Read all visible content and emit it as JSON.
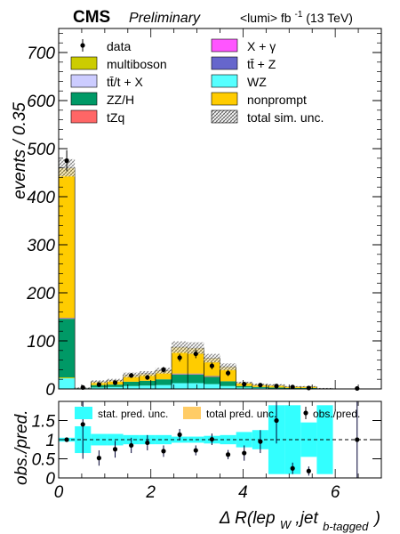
{
  "header": {
    "experiment": "CMS",
    "status": "Preliminary",
    "lumi": "<lumi> fb",
    "lumi_exp": "-1",
    "energy": "(13 TeV)"
  },
  "colors": {
    "multiboson": "#cccc00",
    "ttX": "#ccccff",
    "ZZH": "#009966",
    "tZq": "#ff6666",
    "Xgamma": "#ff55ff",
    "ttZ": "#6666cc",
    "WZ": "#55ffff",
    "nonprompt": "#ffcc00",
    "stat_band": "#33ffff",
    "total_band": "#ffcc66"
  },
  "chart_data": [
    {
      "type": "bar",
      "stacked": true,
      "ylabel": "events / 0.35",
      "ylim": [
        0,
        750
      ],
      "yticks": [
        0,
        100,
        200,
        300,
        400,
        500,
        600,
        700
      ],
      "xlim": [
        0,
        7.0
      ],
      "bin_width": 0.35,
      "x_bin_edges": [
        0,
        0.35,
        0.7,
        1.05,
        1.4,
        1.75,
        2.1,
        2.45,
        2.8,
        3.15,
        3.5,
        3.85,
        4.2,
        4.55,
        4.9,
        5.25,
        5.6,
        5.95,
        6.3,
        6.65,
        7.0
      ],
      "series": [
        {
          "name": "WZ",
          "values": [
            22,
            1,
            3,
            4,
            6,
            7,
            8,
            12,
            12,
            10,
            6,
            3,
            2,
            1,
            1,
            1,
            0,
            0,
            0,
            0
          ]
        },
        {
          "name": "multiboson",
          "values": [
            2,
            0,
            0,
            0,
            0,
            0,
            0,
            0,
            0,
            0,
            0,
            0,
            0,
            0,
            0,
            0,
            0,
            0,
            0,
            0
          ]
        },
        {
          "name": "ZZ/H",
          "values": [
            122,
            1,
            5,
            5,
            9,
            10,
            12,
            18,
            18,
            15,
            10,
            3,
            2,
            2,
            1,
            1,
            0,
            0,
            0,
            0
          ]
        },
        {
          "name": "tZq",
          "values": [
            1,
            0,
            0,
            0,
            0,
            0,
            0,
            1,
            1,
            1,
            0,
            0,
            0,
            0,
            0,
            0,
            0,
            0,
            0,
            0
          ]
        },
        {
          "name": "ttZ",
          "values": [
            1,
            0,
            0,
            0,
            0,
            0,
            0,
            1,
            1,
            1,
            0,
            0,
            0,
            0,
            0,
            0,
            0,
            0,
            0,
            0
          ]
        },
        {
          "name": "nonprompt",
          "values": [
            312,
            0,
            7,
            9,
            14,
            15,
            18,
            55,
            53,
            37,
            30,
            7,
            5,
            5,
            3,
            3,
            1,
            0,
            0,
            0
          ]
        }
      ],
      "total_unc": [
        18,
        1,
        3,
        3,
        5,
        5,
        6,
        12,
        12,
        9,
        7,
        2,
        2,
        2,
        1,
        1,
        1,
        0,
        0,
        0
      ],
      "data": {
        "name": "data",
        "x": [
          0.175,
          0.525,
          0.875,
          1.225,
          1.575,
          1.925,
          2.275,
          2.625,
          2.975,
          3.325,
          3.675,
          4.025,
          4.375,
          4.725,
          5.075,
          5.425,
          6.475
        ],
        "y": [
          475,
          3,
          9,
          13,
          28,
          24,
          40,
          65,
          73,
          48,
          33,
          10,
          8,
          6,
          4,
          2,
          1
        ],
        "yerr": [
          22,
          2,
          3,
          4,
          5,
          5,
          6,
          8,
          9,
          7,
          6,
          3,
          3,
          2,
          2,
          1.5,
          1
        ]
      },
      "legend": {
        "placement": "top",
        "entries": [
          {
            "label": "data",
            "key": "data"
          },
          {
            "label": "X + γ",
            "key": "Xgamma"
          },
          {
            "label": "multiboson",
            "key": "multiboson"
          },
          {
            "label": "tt̄ + Z",
            "key": "ttZ"
          },
          {
            "label": "tt̄/t + X",
            "key": "ttX"
          },
          {
            "label": "WZ",
            "key": "WZ"
          },
          {
            "label": "ZZ/H",
            "key": "ZZH"
          },
          {
            "label": "nonprompt",
            "key": "nonprompt"
          },
          {
            "label": "tZq",
            "key": "tZq"
          },
          {
            "label": "total sim. unc.",
            "key": "total_sim_unc"
          }
        ]
      }
    },
    {
      "type": "scatter",
      "ylabel": "obs./pred.",
      "xlabel_main": "Δ R(lep",
      "xlabel_sub1": "W",
      "xlabel_mid": ",jet",
      "xlabel_sub2": "b-tagged",
      "xlabel_end": ")",
      "ylim": [
        0,
        2
      ],
      "yticks": [
        0,
        0.5,
        1,
        1.5
      ],
      "ytick_labels": [
        "0",
        "0.5",
        "1",
        "1.5"
      ],
      "xlim": [
        0,
        7.0
      ],
      "xticks": [
        0,
        2,
        4,
        6
      ],
      "xtick_labels": [
        "0",
        "2",
        "4",
        "6"
      ],
      "reference_line": 1,
      "stat_unc": [
        0.05,
        0.35,
        0.15,
        0.15,
        0.12,
        0.12,
        0.12,
        0.08,
        0.08,
        0.1,
        0.12,
        0.2,
        0.25,
        0.9,
        0.9,
        0.45,
        0.9,
        0,
        0,
        0
      ],
      "x": [
        0.175,
        0.525,
        0.875,
        1.225,
        1.575,
        1.925,
        2.275,
        2.625,
        2.975,
        3.325,
        3.675,
        4.025,
        4.375,
        4.725,
        5.075,
        5.425,
        6.475
      ],
      "y": [
        1.0,
        1.4,
        0.52,
        0.75,
        0.85,
        0.92,
        0.7,
        1.13,
        0.72,
        1.01,
        0.61,
        0.65,
        0.95,
        1.5,
        0.25,
        0.18,
        1.0
      ],
      "yerr": [
        0.05,
        0.9,
        0.2,
        0.22,
        0.2,
        0.2,
        0.15,
        0.15,
        0.13,
        0.15,
        0.12,
        0.2,
        0.3,
        0.6,
        0.15,
        0.12,
        1.5
      ],
      "legend": {
        "placement": "top",
        "entries": [
          {
            "label": "stat. pred. unc.",
            "key": "stat_band"
          },
          {
            "label": "total pred. unc.",
            "key": "total_band"
          },
          {
            "label": "obs./pred.",
            "key": "ratio"
          }
        ]
      }
    }
  ]
}
